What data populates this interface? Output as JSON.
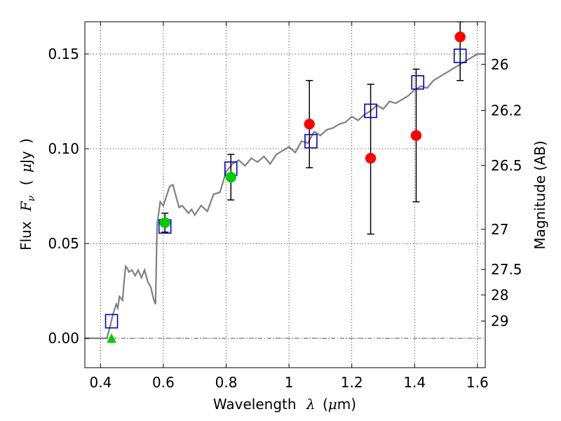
{
  "chart_data": {
    "type": "scatter",
    "xlabel_text": "Wavelength",
    "xlabel_symbol": "λ",
    "xlabel_unit_open": "(",
    "xlabel_unit_mu": "μ",
    "xlabel_unit_rest": "m)",
    "ylabel_text": "Flux",
    "ylabel_symbol": "F",
    "ylabel_sub": "ν",
    "ylabel_unit_open": "(",
    "ylabel_unit_mu": "μ",
    "ylabel_unit_rest": "Jy",
    "ylabel_unit_close": ")",
    "y2label": "Magnitude (AB)",
    "xlim": [
      0.35,
      1.625
    ],
    "ylim": [
      -0.0155,
      0.167
    ],
    "grid": true,
    "grid_style": "dotted",
    "xticks": [
      0.4,
      0.6,
      0.8,
      1.0,
      1.2,
      1.4,
      1.6
    ],
    "xtick_labels": [
      "0.4",
      "0.6",
      "0.8",
      "1",
      "1.2",
      "1.4",
      "1.6"
    ],
    "yticks": [
      0.0,
      0.05,
      0.1,
      0.15
    ],
    "ytick_labels": [
      "0.00",
      "0.05",
      "0.10",
      "0.15"
    ],
    "y2ticks": [
      {
        "label": "26",
        "flux": 0.1445
      },
      {
        "label": "26.2",
        "flux": 0.1202
      },
      {
        "label": "26.5",
        "flux": 0.0912
      },
      {
        "label": "27",
        "flux": 0.0575
      },
      {
        "label": "27.5",
        "flux": 0.0363
      },
      {
        "label": "28",
        "flux": 0.0229
      },
      {
        "label": "29",
        "flux": 0.0091
      }
    ],
    "zero_line": 0.0,
    "model_spectrum": {
      "color": "#808080",
      "x": [
        0.35,
        0.42,
        0.43,
        0.44,
        0.45,
        0.455,
        0.46,
        0.47,
        0.475,
        0.48,
        0.485,
        0.49,
        0.5,
        0.51,
        0.52,
        0.53,
        0.54,
        0.55,
        0.56,
        0.57,
        0.575,
        0.58,
        0.59,
        0.6,
        0.61,
        0.62,
        0.63,
        0.64,
        0.65,
        0.66,
        0.67,
        0.68,
        0.69,
        0.7,
        0.72,
        0.74,
        0.76,
        0.78,
        0.8,
        0.82,
        0.84,
        0.86,
        0.88,
        0.9,
        0.92,
        0.94,
        0.96,
        0.98,
        1.0,
        1.02,
        1.04,
        1.06,
        1.08,
        1.1,
        1.12,
        1.14,
        1.16,
        1.18,
        1.2,
        1.22,
        1.24,
        1.26,
        1.28,
        1.3,
        1.32,
        1.34,
        1.36,
        1.38,
        1.4,
        1.42,
        1.44,
        1.46,
        1.48,
        1.5,
        1.52,
        1.54,
        1.56,
        1.58,
        1.6,
        1.625
      ],
      "y": [
        0.0,
        0.0,
        0.006,
        0.013,
        0.018,
        0.016,
        0.022,
        0.02,
        0.03,
        0.038,
        0.037,
        0.035,
        0.036,
        0.033,
        0.036,
        0.032,
        0.036,
        0.03,
        0.027,
        0.02,
        0.018,
        0.06,
        0.072,
        0.07,
        0.075,
        0.08,
        0.081,
        0.075,
        0.069,
        0.07,
        0.068,
        0.066,
        0.068,
        0.065,
        0.07,
        0.067,
        0.076,
        0.077,
        0.088,
        0.092,
        0.094,
        0.091,
        0.095,
        0.093,
        0.096,
        0.092,
        0.097,
        0.099,
        0.101,
        0.098,
        0.104,
        0.103,
        0.109,
        0.107,
        0.11,
        0.111,
        0.113,
        0.114,
        0.117,
        0.115,
        0.118,
        0.12,
        0.123,
        0.121,
        0.125,
        0.124,
        0.126,
        0.128,
        0.131,
        0.133,
        0.132,
        0.136,
        0.138,
        0.14,
        0.142,
        0.144,
        0.146,
        0.148,
        0.15,
        0.15
      ]
    },
    "model_photometry": {
      "marker": "open-square",
      "color": "#0000cc",
      "x": [
        0.435,
        0.605,
        0.815,
        1.07,
        1.26,
        1.41,
        1.545
      ],
      "y": [
        0.009,
        0.059,
        0.0895,
        0.104,
        0.12,
        0.135,
        0.149
      ]
    },
    "red_points": {
      "marker": "circle",
      "color": "#ff0000",
      "x": [
        1.065,
        1.26,
        1.405,
        1.545
      ],
      "y": [
        0.113,
        0.095,
        0.107,
        0.159
      ],
      "yerr_low": [
        0.09,
        0.055,
        0.072,
        0.136
      ],
      "yerr_high": [
        0.136,
        0.134,
        0.142,
        0.167
      ]
    },
    "green_points": {
      "marker": "circle",
      "color": "#00cc00",
      "x": [
        0.605,
        0.815
      ],
      "y": [
        0.061,
        0.085
      ],
      "yerr_low": [
        0.056,
        0.073
      ],
      "yerr_high": [
        0.066,
        0.097
      ]
    },
    "upper_limit": {
      "marker": "triangle",
      "color": "#00cc00",
      "x": [
        0.435
      ],
      "y": [
        0.0
      ]
    }
  }
}
